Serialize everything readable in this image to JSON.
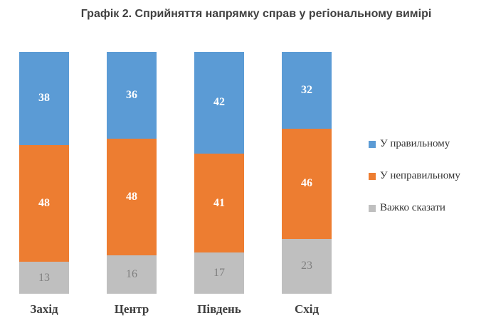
{
  "title": "Графік 2. Сприйняття напрямку справ у регіональному вимірі",
  "chart_data": {
    "type": "bar",
    "stacked": true,
    "title": "Графік 2. Сприйняття напрямку справ у регіональному вимірі",
    "categories": [
      "Захід",
      "Центр",
      "Південь",
      "Схід"
    ],
    "series": [
      {
        "name": "У правильному",
        "color": "#5B9BD5",
        "label_color": "#FFFFFF",
        "values": [
          38,
          36,
          42,
          32
        ]
      },
      {
        "name": "У неправильному",
        "color": "#ED7D31",
        "label_color": "#FFFFFF",
        "values": [
          48,
          48,
          41,
          46
        ]
      },
      {
        "name": "Важко сказати",
        "color": "#BFBFBF",
        "label_color": "#808080",
        "values": [
          13,
          16,
          17,
          23
        ]
      }
    ],
    "data_labels": true,
    "legend_position": "right",
    "xlabel": "",
    "ylabel": ""
  }
}
